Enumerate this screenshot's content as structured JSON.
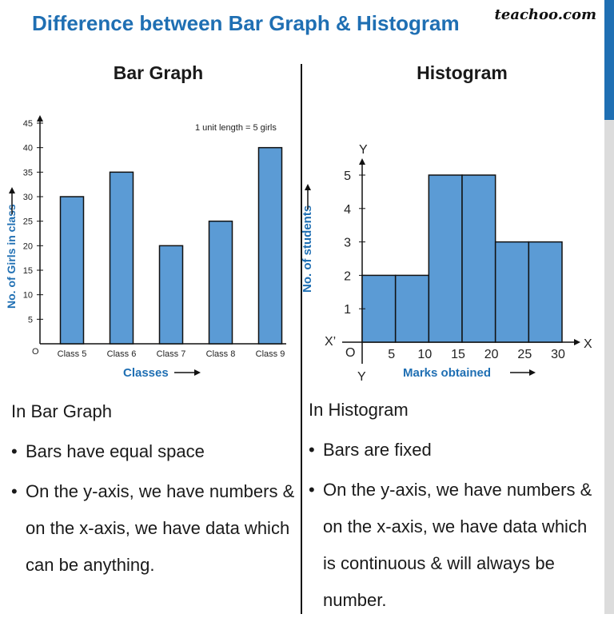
{
  "page": {
    "title": "Difference between Bar Graph & Histogram",
    "logo": "teachoo.com"
  },
  "left": {
    "heading": "Bar Graph",
    "section_title": "In Bar Graph",
    "bullets": [
      "Bars have equal space",
      "On the y-axis, we have numbers & on the x-axis, we have data which can be anything."
    ]
  },
  "right": {
    "heading": "Histogram",
    "section_title": "In Histogram",
    "bullets": [
      "Bars are fixed",
      "On the y-axis, we have numbers & on the x-axis, we have data which is continuous & will always be number."
    ]
  },
  "colors": {
    "bar_fill": "#5b9bd5",
    "bar_stroke": "#111111",
    "accent": "#1f6fb3"
  },
  "chart_data": [
    {
      "type": "bar",
      "categories": [
        "Class 5",
        "Class 6",
        "Class 7",
        "Class 8",
        "Class 9"
      ],
      "values": [
        30,
        35,
        20,
        25,
        40
      ],
      "xlabel": "Classes",
      "ylabel": "No. of Girls in class",
      "ylim": [
        0,
        45
      ],
      "yticks": [
        5,
        10,
        15,
        20,
        25,
        30,
        35,
        40,
        45
      ],
      "origin_label": "O",
      "annotation": "1 unit length = 5 girls",
      "grid": false
    },
    {
      "type": "bar",
      "bins": [
        [
          0,
          5
        ],
        [
          5,
          10
        ],
        [
          10,
          15
        ],
        [
          15,
          20
        ],
        [
          20,
          25
        ],
        [
          25,
          30
        ]
      ],
      "values": [
        2,
        2,
        5,
        5,
        3,
        3
      ],
      "xlabel": "Marks obtained",
      "ylabel": "No. of students",
      "xlim": [
        0,
        30
      ],
      "ylim": [
        0,
        5
      ],
      "xticks": [
        5,
        10,
        15,
        20,
        25,
        30
      ],
      "yticks": [
        1,
        2,
        3,
        4,
        5
      ],
      "origin_label": "O",
      "axis_labels": {
        "x_pos": "X",
        "x_neg": "X’",
        "y_pos": "Y",
        "y_neg": "Y"
      },
      "grid": false
    }
  ]
}
